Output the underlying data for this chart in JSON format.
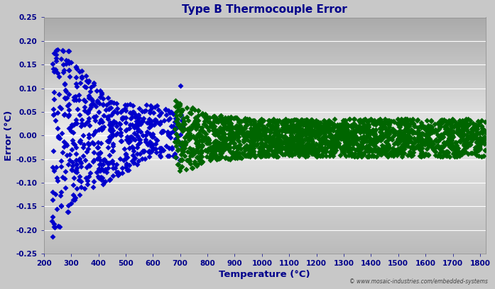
{
  "title": "Type B Thermocouple Error",
  "xlabel": "Temperature (°C)",
  "ylabel": "Error (°C)",
  "xlim": [
    200,
    1820
  ],
  "ylim": [
    -0.25,
    0.25
  ],
  "xticks": [
    200,
    300,
    400,
    500,
    600,
    700,
    800,
    900,
    1000,
    1100,
    1200,
    1300,
    1400,
    1500,
    1600,
    1700,
    1800
  ],
  "yticks": [
    -0.25,
    -0.2,
    -0.15,
    -0.1,
    -0.05,
    0.0,
    0.05,
    0.1,
    0.15,
    0.2,
    0.25
  ],
  "blue_color": "#0000CC",
  "green_color": "#006600",
  "background_color": "#C8C8C8",
  "plot_bg_top": "#B0B0B0",
  "plot_bg_mid": "#E8E8E8",
  "plot_bg_bot": "#B8B8B8",
  "title_color": "#00008B",
  "axis_label_color": "#00008B",
  "tick_label_color": "#00008B",
  "watermark": "© www.mosaic-industries.com/embedded-systems",
  "marker": "D",
  "marker_size": 16,
  "blue_seed": 42,
  "green_seed": 99
}
